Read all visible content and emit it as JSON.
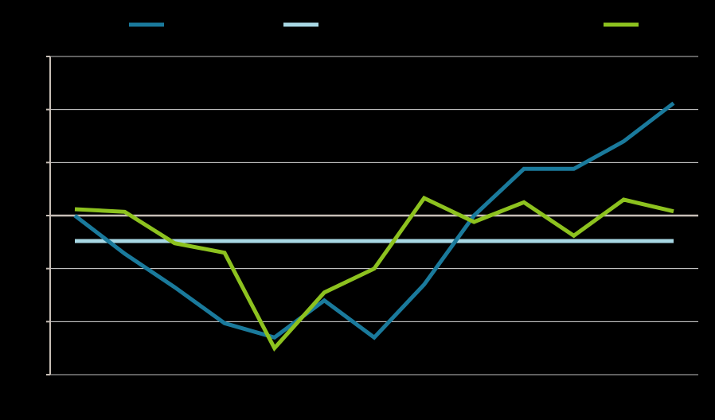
{
  "chart_data": {
    "type": "line",
    "title": "",
    "xlabel": "",
    "ylabel": "",
    "x": [
      1,
      2,
      3,
      4,
      5,
      6,
      7,
      8,
      9,
      10,
      11,
      12,
      13
    ],
    "ylim": [
      -3,
      3
    ],
    "yticks": [
      -3,
      -2,
      -1,
      0,
      1,
      2,
      3
    ],
    "grid": true,
    "legend_position": "top",
    "series": [
      {
        "key": "blue",
        "color": "#1a7a9c",
        "values": [
          0.0,
          -0.72,
          -1.35,
          -2.03,
          -2.3,
          -1.6,
          -2.3,
          -1.3,
          0.0,
          0.88,
          0.88,
          1.4,
          2.12
        ]
      },
      {
        "key": "lightblue",
        "color": "#a8d8e4",
        "values": [
          -0.48,
          -0.48,
          -0.48,
          -0.48,
          -0.48,
          -0.48,
          -0.48,
          -0.48,
          -0.48,
          -0.48,
          -0.48,
          -0.48,
          -0.48
        ]
      },
      {
        "key": "green",
        "color": "#8dc21f",
        "values": [
          0.12,
          0.07,
          -0.52,
          -0.7,
          -2.5,
          -1.45,
          -1.0,
          0.33,
          -0.12,
          0.25,
          -0.38,
          0.3,
          0.08
        ]
      }
    ],
    "colors": {
      "background": "#000000",
      "gridline": "#ffffff",
      "zero_line": "#c8bfb7",
      "axis": "#c8bfb7"
    }
  }
}
